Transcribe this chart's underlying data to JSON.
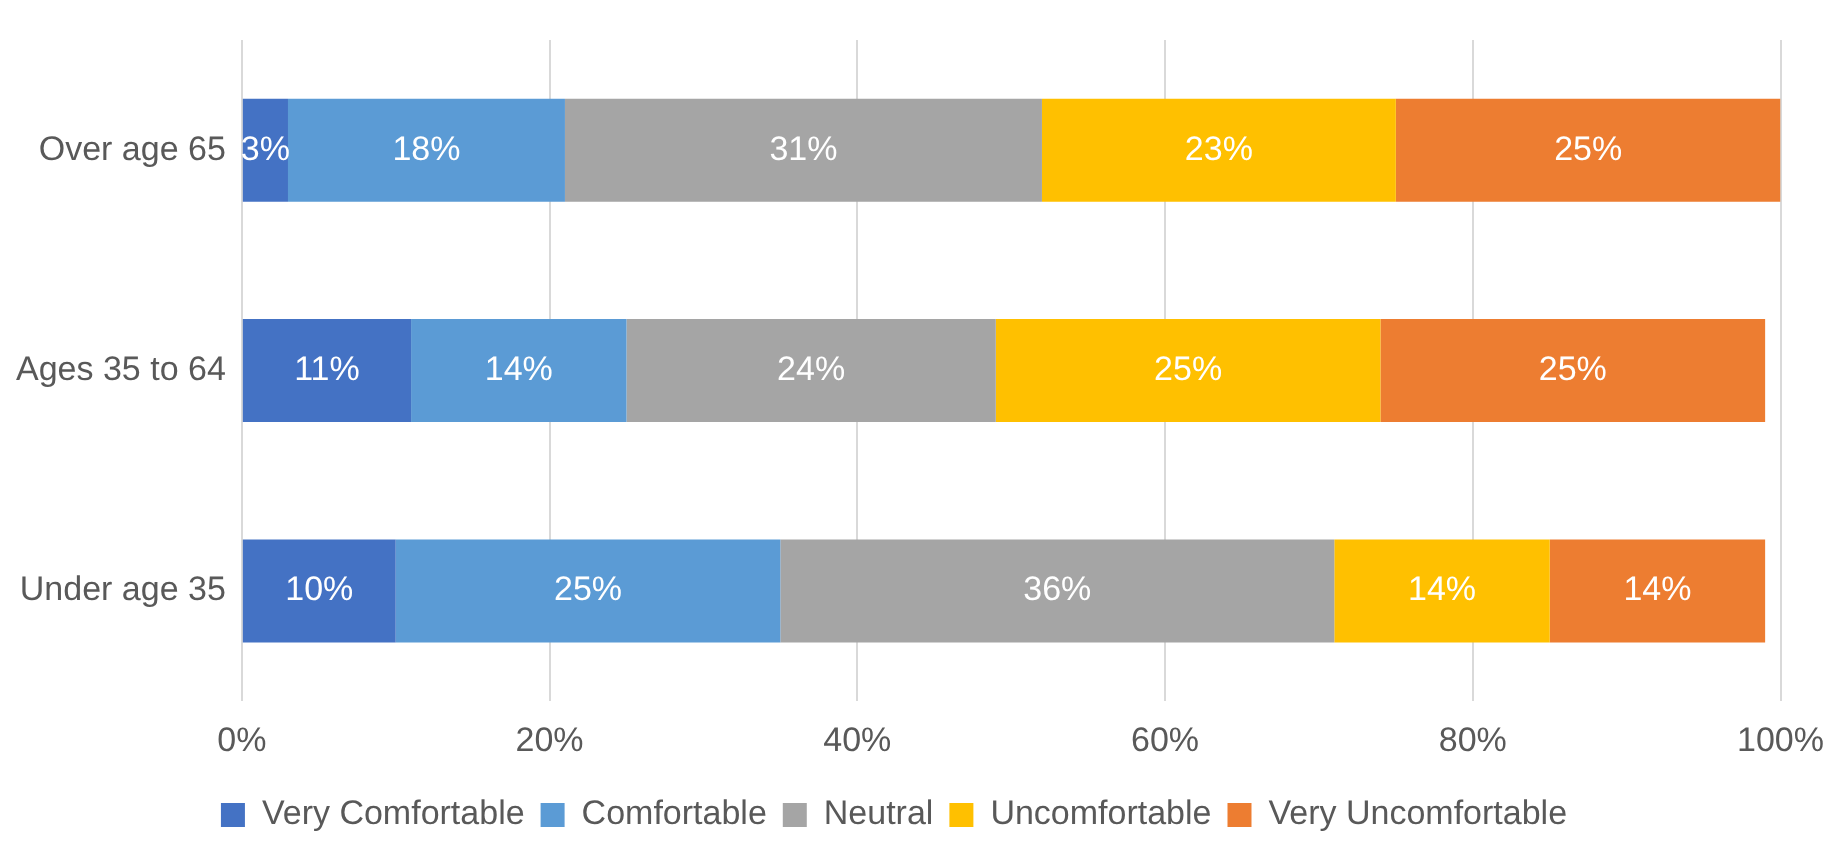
{
  "chart_data": {
    "type": "bar",
    "orientation": "horizontal",
    "stacked": true,
    "categories": [
      "Over age 65",
      "Ages 35 to 64",
      "Under age 35"
    ],
    "series": [
      {
        "name": "Very Comfortable",
        "color": "#4472c4",
        "values": [
          3,
          11,
          10
        ],
        "value_labels": [
          "3%",
          "11%",
          "10%"
        ]
      },
      {
        "name": "Comfortable",
        "color": "#5b9bd5",
        "values": [
          18,
          14,
          25
        ],
        "value_labels": [
          "18%",
          "14%",
          "25%"
        ]
      },
      {
        "name": "Neutral",
        "color": "#a5a5a5",
        "values": [
          31,
          24,
          36
        ],
        "value_labels": [
          "31%",
          "24%",
          "36%"
        ]
      },
      {
        "name": "Uncomfortable",
        "color": "#ffc000",
        "values": [
          23,
          25,
          14
        ],
        "value_labels": [
          "23%",
          "25%",
          "14%"
        ]
      },
      {
        "name": "Very Uncomfortable",
        "color": "#ed7d31",
        "values": [
          25,
          25,
          14
        ],
        "value_labels": [
          "25%",
          "25%",
          "14%"
        ]
      }
    ],
    "xlim": [
      0,
      100
    ],
    "xticks": [
      {
        "value": 0,
        "label": "0%"
      },
      {
        "value": 20,
        "label": "20%"
      },
      {
        "value": 40,
        "label": "40%"
      },
      {
        "value": 60,
        "label": "60%"
      },
      {
        "value": 80,
        "label": "80%"
      },
      {
        "value": 100,
        "label": "100%"
      }
    ],
    "grid": "x",
    "legend": "bottom"
  }
}
